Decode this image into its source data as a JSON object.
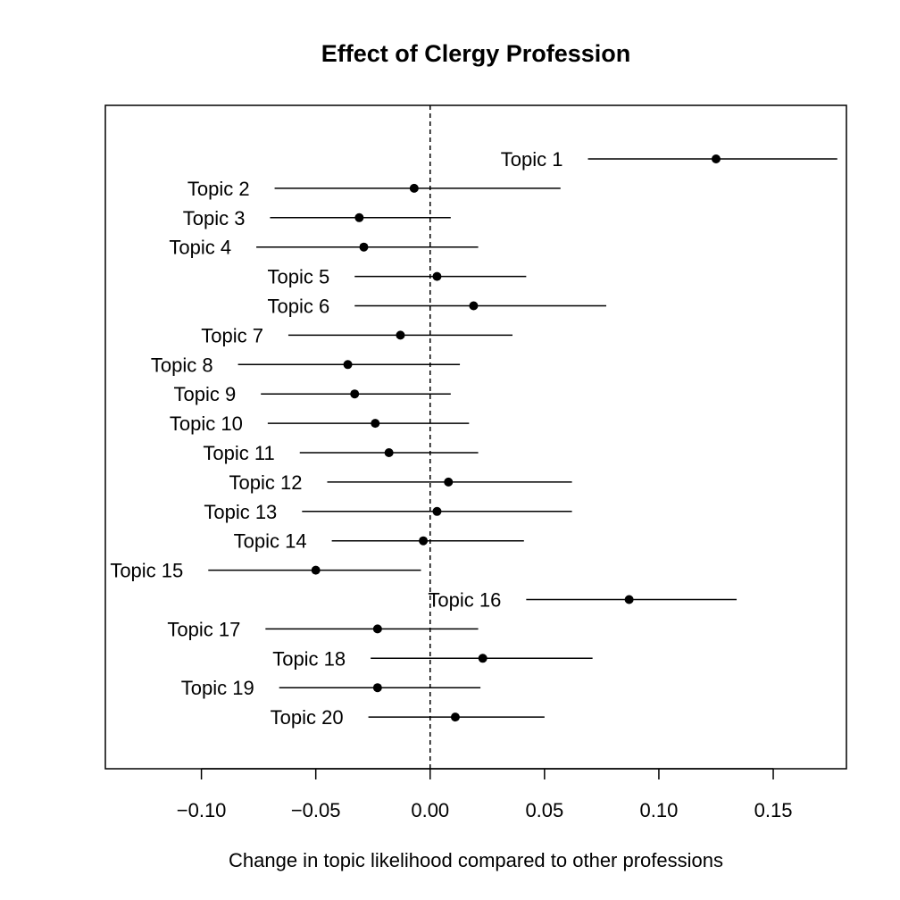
{
  "chart_data": {
    "type": "scatter",
    "subtype": "coefficient-plot-with-intervals",
    "title": "Effect of Clergy Profession",
    "xlabel": "Change in topic likelihood compared to other professions",
    "ylabel": "",
    "xlim": [
      -0.142,
      0.182
    ],
    "xticks": [
      -0.1,
      -0.05,
      0.0,
      0.05,
      0.1,
      0.15
    ],
    "xtick_labels": [
      "−0.10",
      "−0.05",
      "0.00",
      "0.05",
      "0.10",
      "0.15"
    ],
    "reference_line": 0.0,
    "grid": false,
    "legend": null,
    "points": [
      {
        "label": "Topic 1",
        "estimate": 0.125,
        "lower": 0.069,
        "upper": 0.178
      },
      {
        "label": "Topic 2",
        "estimate": -0.007,
        "lower": -0.068,
        "upper": 0.057
      },
      {
        "label": "Topic 3",
        "estimate": -0.031,
        "lower": -0.07,
        "upper": 0.009
      },
      {
        "label": "Topic 4",
        "estimate": -0.029,
        "lower": -0.076,
        "upper": 0.021
      },
      {
        "label": "Topic 5",
        "estimate": 0.003,
        "lower": -0.033,
        "upper": 0.042
      },
      {
        "label": "Topic 6",
        "estimate": 0.019,
        "lower": -0.033,
        "upper": 0.077
      },
      {
        "label": "Topic 7",
        "estimate": -0.013,
        "lower": -0.062,
        "upper": 0.036
      },
      {
        "label": "Topic 8",
        "estimate": -0.036,
        "lower": -0.084,
        "upper": 0.013
      },
      {
        "label": "Topic 9",
        "estimate": -0.033,
        "lower": -0.074,
        "upper": 0.009
      },
      {
        "label": "Topic 10",
        "estimate": -0.024,
        "lower": -0.071,
        "upper": 0.017
      },
      {
        "label": "Topic 11",
        "estimate": -0.018,
        "lower": -0.057,
        "upper": 0.021
      },
      {
        "label": "Topic 12",
        "estimate": 0.008,
        "lower": -0.045,
        "upper": 0.062
      },
      {
        "label": "Topic 13",
        "estimate": 0.003,
        "lower": -0.056,
        "upper": 0.062
      },
      {
        "label": "Topic 14",
        "estimate": -0.003,
        "lower": -0.043,
        "upper": 0.041
      },
      {
        "label": "Topic 15",
        "estimate": -0.05,
        "lower": -0.097,
        "upper": -0.004
      },
      {
        "label": "Topic 16",
        "estimate": 0.087,
        "lower": 0.042,
        "upper": 0.134
      },
      {
        "label": "Topic 17",
        "estimate": -0.023,
        "lower": -0.072,
        "upper": 0.021
      },
      {
        "label": "Topic 18",
        "estimate": 0.023,
        "lower": -0.026,
        "upper": 0.071
      },
      {
        "label": "Topic 19",
        "estimate": -0.023,
        "lower": -0.066,
        "upper": 0.022
      },
      {
        "label": "Topic 20",
        "estimate": 0.011,
        "lower": -0.027,
        "upper": 0.05
      }
    ]
  }
}
